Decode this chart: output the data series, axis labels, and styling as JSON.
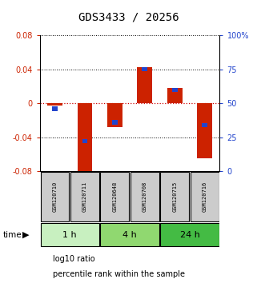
{
  "title": "GDS3433 / 20256",
  "samples": [
    "GSM120710",
    "GSM120711",
    "GSM120648",
    "GSM120708",
    "GSM120715",
    "GSM120716"
  ],
  "groups": [
    {
      "label": "1 h",
      "indices": [
        0,
        1
      ],
      "color": "#c8f0c0"
    },
    {
      "label": "4 h",
      "indices": [
        2,
        3
      ],
      "color": "#90d870"
    },
    {
      "label": "24 h",
      "indices": [
        4,
        5
      ],
      "color": "#44bb44"
    }
  ],
  "log10_ratio": [
    -0.003,
    -0.09,
    -0.028,
    0.043,
    0.018,
    -0.065
  ],
  "percentile_rank": [
    46,
    22,
    36,
    75,
    60,
    34
  ],
  "ylim_left": [
    -0.08,
    0.08
  ],
  "yticks_left": [
    -0.08,
    -0.04,
    0,
    0.04,
    0.08
  ],
  "yticks_right": [
    0,
    25,
    50,
    75,
    100
  ],
  "bar_color_red": "#cc2200",
  "bar_color_blue": "#2244cc",
  "bar_width": 0.5,
  "blue_bar_width": 0.18,
  "blue_bar_height": 0.005,
  "grid_color": "#000000",
  "zero_line_color": "#cc0000",
  "background_chart": "#ffffff",
  "background_labels": "#cccccc",
  "title_fontsize": 10,
  "tick_fontsize": 7,
  "sample_fontsize": 5,
  "group_fontsize": 8,
  "legend_fontsize": 7
}
